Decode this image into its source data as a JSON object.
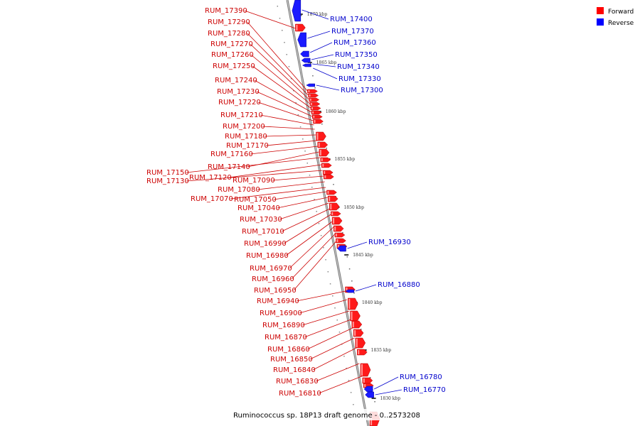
{
  "caption": "Ruminococcus sp. 18P13 draft genome - 0..2573208",
  "legend": [
    {
      "label": "Forward",
      "color": "#ff0000"
    },
    {
      "label": "Reverse",
      "color": "#0000ff"
    }
  ],
  "colors": {
    "forward_label": "#cc0000",
    "reverse_label": "#0000cc",
    "backbone": "#888888"
  },
  "ticks": [
    "1870 kbp",
    "1865 kbp",
    "1860 kbp",
    "1855 kbp",
    "1850 kbp",
    "1845 kbp",
    "1840 kbp",
    "1835 kbp",
    "1830 kbp"
  ],
  "forward_genes": [
    "RUM_17390",
    "RUM_17290",
    "RUM_17280",
    "RUM_17270",
    "RUM_17260",
    "RUM_17250",
    "RUM_17240",
    "RUM_17230",
    "RUM_17220",
    "RUM_17210",
    "RUM_17200",
    "RUM_17180",
    "RUM_17170",
    "RUM_17160",
    "RUM_17140",
    "RUM_17150",
    "RUM_17120",
    "RUM_17130",
    "RUM_17090",
    "RUM_17080",
    "RUM_17070",
    "RUM_17050",
    "RUM_17040",
    "RUM_17030",
    "RUM_17010",
    "RUM_16990",
    "RUM_16980",
    "RUM_16970",
    "RUM_16960",
    "RUM_16950",
    "RUM_16940",
    "RUM_16900",
    "RUM_16890",
    "RUM_16870",
    "RUM_16860",
    "RUM_16850",
    "RUM_16840",
    "RUM_16830",
    "RUM_16810"
  ],
  "reverse_genes": [
    "RUM_17400",
    "RUM_17370",
    "RUM_17360",
    "RUM_17350",
    "RUM_17340",
    "RUM_17330",
    "RUM_17300",
    "RUM_16930",
    "RUM_16880",
    "RUM_16780",
    "RUM_16770"
  ]
}
